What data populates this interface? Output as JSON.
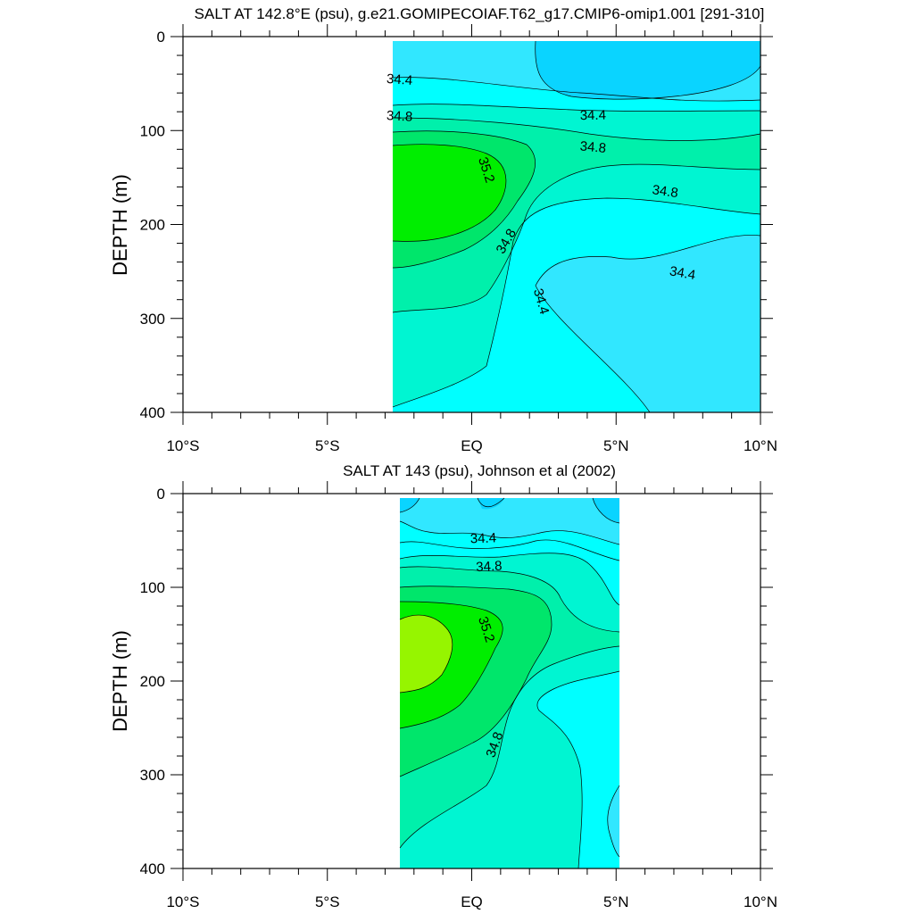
{
  "chart_data": [
    {
      "type": "contour",
      "title": "SALT AT 142.8°E (psu), g.e21.GOMIPECOIAF.T62_g17.CMIP6-omip1.001 [291-310]",
      "xlabel": "",
      "ylabel": "DEPTH (m)",
      "xlim": [
        -10,
        10
      ],
      "ylim": [
        400,
        0
      ],
      "x_ticks": [
        -10,
        -5,
        0,
        5,
        10
      ],
      "x_tick_labels": [
        "10°S",
        "5°S",
        "EQ",
        "5°N",
        "10°N"
      ],
      "y_ticks": [
        0,
        100,
        200,
        300,
        400
      ],
      "y_tick_labels": [
        "0",
        "100",
        "200",
        "300",
        "400"
      ],
      "data_extent": {
        "x": [
          -3.0,
          10.0
        ],
        "depth": [
          5,
          400
        ]
      },
      "fill_levels": [
        {
          "min": 34.0,
          "max": 34.2,
          "color": "#0ad4ff"
        },
        {
          "min": 34.2,
          "max": 34.4,
          "color": "#31e7ff"
        },
        {
          "min": 34.4,
          "max": 34.6,
          "color": "#00ffff"
        },
        {
          "min": 34.6,
          "max": 34.8,
          "color": "#00f5d2"
        },
        {
          "min": 34.8,
          "max": 35.0,
          "color": "#00f0ab"
        },
        {
          "min": 35.0,
          "max": 35.2,
          "color": "#00e66b"
        },
        {
          "min": 35.2,
          "max": 35.4,
          "color": "#00ee00"
        }
      ],
      "contour_labels": [
        {
          "text": "34.4",
          "x": -2.5,
          "depth": 46,
          "angle": 4
        },
        {
          "text": "34.4",
          "x": 4.2,
          "depth": 84,
          "angle": -1
        },
        {
          "text": "34.8",
          "x": -2.5,
          "depth": 85,
          "angle": 3
        },
        {
          "text": "34.8",
          "x": 4.2,
          "depth": 118,
          "angle": 5
        },
        {
          "text": "35.2",
          "x": 0.5,
          "depth": 142,
          "angle": 72
        },
        {
          "text": "34.8",
          "x": 6.7,
          "depth": 165,
          "angle": 8
        },
        {
          "text": "34.8",
          "x": 1.2,
          "depth": 218,
          "angle": -60
        },
        {
          "text": "34.4",
          "x": 7.3,
          "depth": 252,
          "angle": 10
        },
        {
          "text": "34.4",
          "x": 2.4,
          "depth": 282,
          "angle": 74
        }
      ]
    },
    {
      "type": "contour",
      "title": "SALT AT 143 (psu), Johnson et al (2002)",
      "xlabel": "",
      "ylabel": "DEPTH (m)",
      "xlim": [
        -10,
        10
      ],
      "ylim": [
        400,
        0
      ],
      "x_ticks": [
        -10,
        -5,
        0,
        5,
        10
      ],
      "x_tick_labels": [
        "10°S",
        "5°S",
        "EQ",
        "5°N",
        "10°N"
      ],
      "y_ticks": [
        0,
        100,
        200,
        300,
        400
      ],
      "y_tick_labels": [
        "0",
        "100",
        "200",
        "300",
        "400"
      ],
      "data_extent": {
        "x": [
          -2.7,
          5.0
        ],
        "depth": [
          5,
          400
        ]
      },
      "fill_levels": [
        {
          "min": 34.0,
          "max": 34.2,
          "color": "#0ad4ff"
        },
        {
          "min": 34.2,
          "max": 34.4,
          "color": "#31e7ff"
        },
        {
          "min": 34.4,
          "max": 34.6,
          "color": "#00ffff"
        },
        {
          "min": 34.6,
          "max": 34.8,
          "color": "#00f5d2"
        },
        {
          "min": 34.8,
          "max": 35.0,
          "color": "#00f0ab"
        },
        {
          "min": 35.0,
          "max": 35.2,
          "color": "#00e66b"
        },
        {
          "min": 35.2,
          "max": 35.4,
          "color": "#00ee00"
        },
        {
          "min": 35.4,
          "max": 35.6,
          "color": "#96f500"
        }
      ],
      "contour_labels": [
        {
          "text": "34.4",
          "x": 0.4,
          "depth": 48,
          "angle": -2
        },
        {
          "text": "34.8",
          "x": 0.6,
          "depth": 78,
          "angle": -3
        },
        {
          "text": "35.2",
          "x": 0.5,
          "depth": 145,
          "angle": 72
        },
        {
          "text": "34.8",
          "x": 0.8,
          "depth": 268,
          "angle": -70
        }
      ]
    }
  ]
}
